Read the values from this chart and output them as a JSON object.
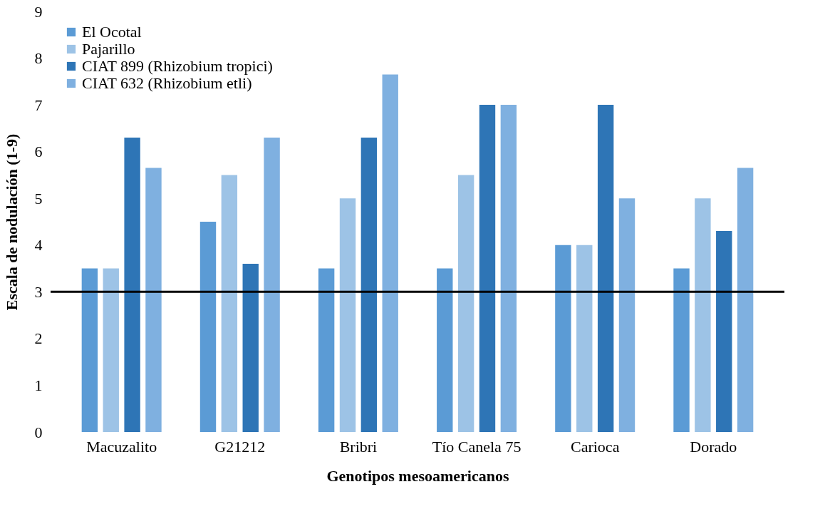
{
  "chart_data": {
    "type": "bar",
    "xlabel": "Genotipos mesoamericanos",
    "ylabel": "Escala de nodulación (1-9)",
    "categories": [
      "Macuzalito",
      "G21212",
      "Bribri",
      "Tío Canela 75",
      "Carioca",
      "Dorado"
    ],
    "series": [
      {
        "name": "El Ocotal",
        "color": "#5b9bd5",
        "values": [
          3.5,
          4.5,
          3.5,
          3.5,
          4.0,
          3.5
        ]
      },
      {
        "name": "Pajarillo",
        "color": "#9dc3e6",
        "values": [
          3.5,
          5.5,
          5.0,
          5.5,
          4.0,
          5.0
        ]
      },
      {
        "name": "CIAT 899 (Rhizobium tropici)",
        "color": "#2e75b6",
        "values": [
          6.3,
          3.6,
          6.3,
          7.0,
          7.0,
          4.3
        ]
      },
      {
        "name": "CIAT 632 (Rhizobium etli)",
        "color": "#7fb0e0",
        "values": [
          5.65,
          6.3,
          7.65,
          7.0,
          5.0,
          5.65
        ]
      }
    ],
    "ylim": [
      0,
      9
    ],
    "yticks": [
      0,
      1,
      2,
      3,
      4,
      5,
      6,
      7,
      8,
      9
    ],
    "grid": false,
    "legend": "top left",
    "ref_lines": [
      {
        "axis": "y",
        "value": 3,
        "color": "#000000"
      }
    ]
  }
}
